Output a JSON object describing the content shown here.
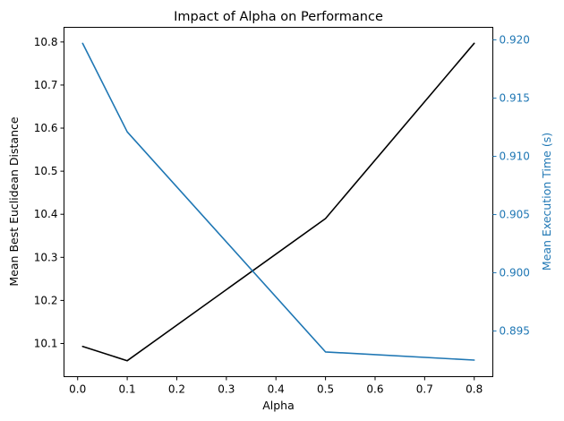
{
  "chart_data": {
    "type": "line",
    "title": "Impact of Alpha on Performance",
    "xlabel": "Alpha",
    "ylabel_left": "Mean Best Euclidean Distance",
    "ylabel_right": "Mean Execution Time (s)",
    "x": [
      0.01,
      0.1,
      0.5,
      0.8
    ],
    "xlim": [
      -0.0275,
      0.8375
    ],
    "xticks": [
      "0.0",
      "0.1",
      "0.2",
      "0.3",
      "0.4",
      "0.5",
      "0.6",
      "0.7",
      "0.8"
    ],
    "series": [
      {
        "axis": "left",
        "color": "#000000",
        "values": [
          10.093,
          10.06,
          10.39,
          10.797
        ]
      },
      {
        "axis": "right",
        "color": "#1f77b4",
        "values": [
          0.9197,
          0.9121,
          0.8932,
          0.8925
        ]
      }
    ],
    "ylim_left": [
      10.023,
      10.834
    ],
    "yticks_left": [
      "10.1",
      "10.2",
      "10.3",
      "10.4",
      "10.5",
      "10.6",
      "10.7",
      "10.8"
    ],
    "ylim_right": [
      0.89108,
      0.92108
    ],
    "yticks_right": [
      "0.895",
      "0.900",
      "0.905",
      "0.910",
      "0.915",
      "0.920"
    ],
    "grid": false,
    "legend": "none"
  }
}
